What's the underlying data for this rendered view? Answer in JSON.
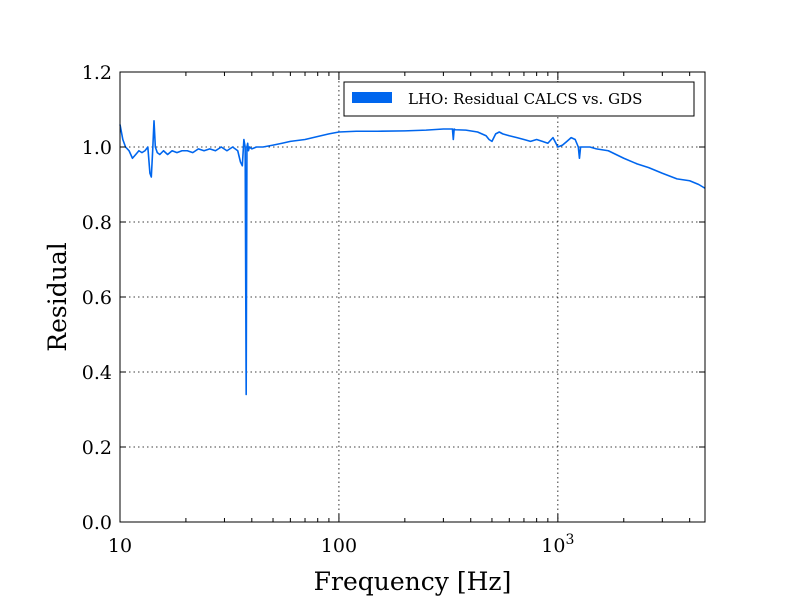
{
  "chart_data": {
    "type": "line",
    "xlabel": "Frequency [Hz]",
    "ylabel": "Residual",
    "xscale": "log",
    "xlim": [
      10,
      4700
    ],
    "ylim": [
      0.0,
      1.2
    ],
    "grid": true,
    "legend_placement": "top-right",
    "x_ticks": [
      {
        "value": 10,
        "label": "10"
      },
      {
        "value": 100,
        "label": "100"
      },
      {
        "value": 1000,
        "label": "10^3"
      }
    ],
    "y_ticks": [
      {
        "value": 0.0,
        "label": "0.0"
      },
      {
        "value": 0.2,
        "label": "0.2"
      },
      {
        "value": 0.4,
        "label": "0.4"
      },
      {
        "value": 0.6,
        "label": "0.6"
      },
      {
        "value": 0.8,
        "label": "0.8"
      },
      {
        "value": 1.0,
        "label": "1.0"
      },
      {
        "value": 1.2,
        "label": "1.2"
      }
    ],
    "series": [
      {
        "name": "LHO: Residual CALCS vs. GDS",
        "color": "#0066ee",
        "x": [
          10,
          10.3,
          10.6,
          11,
          11.4,
          11.8,
          12.2,
          12.6,
          13.0,
          13.4,
          13.7,
          13.9,
          14.1,
          14.3,
          14.5,
          14.8,
          15.2,
          15.8,
          16.5,
          17.3,
          18.2,
          19.2,
          20.3,
          21.5,
          22.8,
          24.2,
          25.7,
          27.3,
          29.0,
          30.8,
          32.7,
          34.5,
          35.5,
          36.2,
          36.8,
          37.3,
          37.7,
          38.0,
          38.3,
          38.6,
          39.0,
          40.0,
          42.0,
          45.0,
          50.0,
          55.0,
          60.0,
          70.0,
          80.0,
          90.0,
          100.0,
          120.0,
          150.0,
          200.0,
          250.0,
          300.0,
          330.0,
          333.0,
          336.0,
          340.0,
          380.0,
          430.0,
          470.0,
          485.0,
          500.0,
          520.0,
          540.0,
          560.0,
          600.0,
          650.0,
          700.0,
          750.0,
          800.0,
          850.0,
          900.0,
          950.0,
          1000.0,
          1050.0,
          1100.0,
          1150.0,
          1200.0,
          1240.0,
          1255.0,
          1270.0,
          1300.0,
          1400.0,
          1500.0,
          1700.0,
          2000.0,
          2300.0,
          2600.0,
          3000.0,
          3500.0,
          4000.0,
          4400.0,
          4700.0
        ],
        "y": [
          1.06,
          1.02,
          1.0,
          0.99,
          0.97,
          0.98,
          0.99,
          0.985,
          0.99,
          1.0,
          0.93,
          0.92,
          0.99,
          1.07,
          1.0,
          0.985,
          0.98,
          0.99,
          0.98,
          0.99,
          0.985,
          0.99,
          0.99,
          0.985,
          0.995,
          0.99,
          0.995,
          0.99,
          1.0,
          0.99,
          1.0,
          0.99,
          0.96,
          0.95,
          1.02,
          1.0,
          0.34,
          1.0,
          1.01,
          0.99,
          1.0,
          0.995,
          1.0,
          1.0,
          1.005,
          1.01,
          1.015,
          1.02,
          1.028,
          1.035,
          1.04,
          1.042,
          1.042,
          1.043,
          1.045,
          1.048,
          1.048,
          1.02,
          1.048,
          1.046,
          1.045,
          1.04,
          1.03,
          1.02,
          1.015,
          1.035,
          1.04,
          1.035,
          1.03,
          1.025,
          1.02,
          1.015,
          1.02,
          1.015,
          1.01,
          1.025,
          1.0,
          1.005,
          1.015,
          1.025,
          1.02,
          1.0,
          0.97,
          1.0,
          1.0,
          1.0,
          0.995,
          0.99,
          0.97,
          0.955,
          0.945,
          0.93,
          0.915,
          0.91,
          0.9,
          0.89
        ]
      }
    ]
  }
}
